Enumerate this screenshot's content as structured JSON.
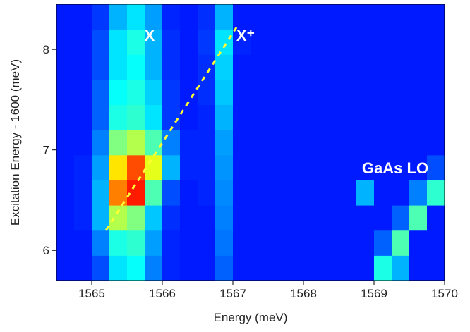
{
  "chart_data": {
    "type": "heatmap",
    "colormap": "jet",
    "xlabel": "Energy (meV)",
    "ylabel": "Excitation Energy - 1600 (meV)",
    "xlim": [
      1564.5,
      1570
    ],
    "ylim": [
      5.7,
      8.45
    ],
    "zlim": [
      0,
      100
    ],
    "xticks": [
      1565,
      1566,
      1567,
      1568,
      1569,
      1570
    ],
    "yticks": [
      6,
      7,
      8
    ],
    "x": [
      1564.625,
      1564.875,
      1565.125,
      1565.375,
      1565.625,
      1565.875,
      1566.125,
      1566.375,
      1566.625,
      1566.875,
      1567.125,
      1567.375,
      1567.625,
      1567.875,
      1568.125,
      1568.375,
      1568.625,
      1568.875,
      1569.125,
      1569.375,
      1569.625,
      1569.875
    ],
    "y": [
      5.825,
      6.075,
      6.325,
      6.575,
      6.825,
      7.075,
      7.325,
      7.575,
      7.825,
      8.075,
      8.325
    ],
    "z": [
      [
        15,
        15,
        20,
        35,
        38,
        25,
        16,
        15,
        15,
        22,
        15,
        15,
        15,
        15,
        15,
        15,
        15,
        15,
        40,
        30,
        15,
        15
      ],
      [
        15,
        15,
        25,
        40,
        42,
        28,
        16,
        15,
        15,
        24,
        15,
        15,
        15,
        15,
        15,
        15,
        15,
        15,
        22,
        45,
        15,
        15
      ],
      [
        15,
        16,
        30,
        55,
        50,
        32,
        17,
        15,
        15,
        25,
        15,
        15,
        15,
        15,
        15,
        15,
        15,
        15,
        15,
        22,
        45,
        15
      ],
      [
        15,
        16,
        30,
        75,
        85,
        45,
        20,
        15,
        16,
        26,
        15,
        15,
        15,
        15,
        15,
        15,
        15,
        30,
        15,
        15,
        25,
        42
      ],
      [
        15,
        16,
        28,
        65,
        80,
        60,
        30,
        16,
        16,
        27,
        15,
        15,
        15,
        15,
        15,
        15,
        15,
        15,
        15,
        15,
        15,
        20
      ],
      [
        15,
        15,
        25,
        50,
        55,
        45,
        25,
        16,
        16,
        28,
        15,
        15,
        15,
        15,
        15,
        15,
        15,
        15,
        15,
        15,
        15,
        15
      ],
      [
        15,
        15,
        22,
        40,
        42,
        35,
        18,
        15,
        16,
        30,
        15,
        15,
        15,
        15,
        15,
        15,
        15,
        15,
        15,
        15,
        15,
        15
      ],
      [
        15,
        15,
        22,
        38,
        40,
        33,
        18,
        15,
        17,
        32,
        15,
        15,
        15,
        15,
        15,
        15,
        15,
        15,
        15,
        15,
        15,
        15
      ],
      [
        15,
        15,
        20,
        35,
        38,
        30,
        17,
        15,
        17,
        33,
        15,
        15,
        15,
        15,
        15,
        15,
        15,
        15,
        15,
        15,
        15,
        15
      ],
      [
        15,
        15,
        20,
        35,
        40,
        30,
        17,
        15,
        18,
        35,
        16,
        15,
        15,
        15,
        15,
        15,
        15,
        15,
        15,
        15,
        15,
        15
      ],
      [
        15,
        15,
        18,
        30,
        35,
        28,
        16,
        15,
        17,
        30,
        15,
        15,
        15,
        15,
        15,
        15,
        15,
        15,
        15,
        15,
        15,
        15
      ]
    ],
    "annotations": [
      "X",
      "X⁺",
      "GaAs LO"
    ]
  }
}
